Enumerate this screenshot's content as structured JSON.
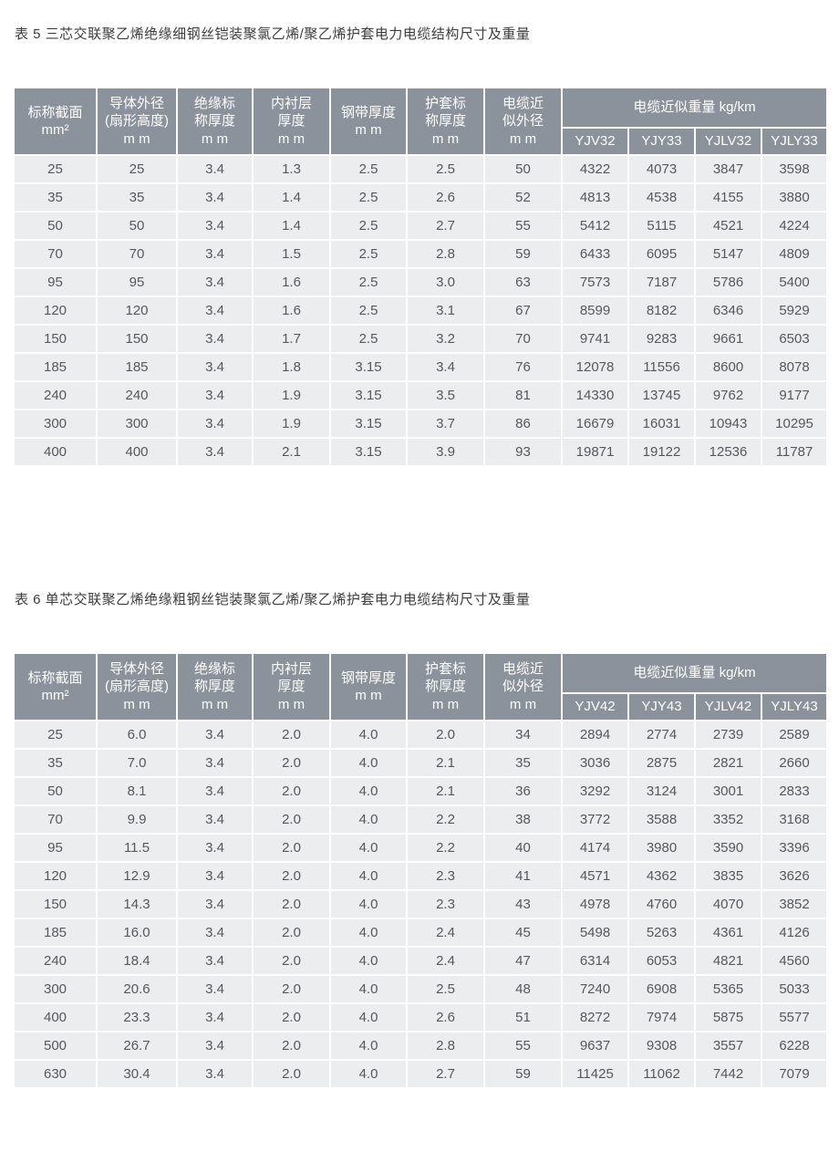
{
  "colors": {
    "header_bg": "#8b929b",
    "header_text": "#ffffff",
    "row_bg": "#ebedee",
    "cell_text": "#55585c",
    "title_text": "#3d3d3d",
    "grid_line": "#ffffff"
  },
  "tables": [
    {
      "title": "表 5 三芯交联聚乙烯绝缘细钢丝铠装聚氯乙烯/聚乙烯护套电力电缆结构尺寸及重量",
      "columns": [
        "标称截面\nmm²",
        "导体外径\n(扇形高度)\nm m",
        "绝缘标\n称厚度\nm m",
        "内衬层\n厚度\nm m",
        "钢带厚度\nm m",
        "护套标\n称厚度\nm m",
        "电缆近\n似外径\nm m"
      ],
      "weight_group": {
        "label": "电缆近似重量 kg/km",
        "models": [
          "YJV32",
          "YJY33",
          "YJLV32",
          "YJLY33"
        ]
      },
      "rows": [
        [
          "25",
          "25",
          "3.4",
          "1.3",
          "2.5",
          "2.5",
          "50",
          "4322",
          "4073",
          "3847",
          "3598"
        ],
        [
          "35",
          "35",
          "3.4",
          "1.4",
          "2.5",
          "2.6",
          "52",
          "4813",
          "4538",
          "4155",
          "3880"
        ],
        [
          "50",
          "50",
          "3.4",
          "1.4",
          "2.5",
          "2.7",
          "55",
          "5412",
          "5115",
          "4521",
          "4224"
        ],
        [
          "70",
          "70",
          "3.4",
          "1.5",
          "2.5",
          "2.8",
          "59",
          "6433",
          "6095",
          "5147",
          "4809"
        ],
        [
          "95",
          "95",
          "3.4",
          "1.6",
          "2.5",
          "3.0",
          "63",
          "7573",
          "7187",
          "5786",
          "5400"
        ],
        [
          "120",
          "120",
          "3.4",
          "1.6",
          "2.5",
          "3.1",
          "67",
          "8599",
          "8182",
          "6346",
          "5929"
        ],
        [
          "150",
          "150",
          "3.4",
          "1.7",
          "2.5",
          "3.2",
          "70",
          "9741",
          "9283",
          "9661",
          "6503"
        ],
        [
          "185",
          "185",
          "3.4",
          "1.8",
          "3.15",
          "3.4",
          "76",
          "12078",
          "11556",
          "8600",
          "8078"
        ],
        [
          "240",
          "240",
          "3.4",
          "1.9",
          "3.15",
          "3.5",
          "81",
          "14330",
          "13745",
          "9762",
          "9177"
        ],
        [
          "300",
          "300",
          "3.4",
          "1.9",
          "3.15",
          "3.7",
          "86",
          "16679",
          "16031",
          "10943",
          "10295"
        ],
        [
          "400",
          "400",
          "3.4",
          "2.1",
          "3.15",
          "3.9",
          "93",
          "19871",
          "19122",
          "12536",
          "11787"
        ]
      ]
    },
    {
      "title": "表 6 单芯交联聚乙烯绝缘粗钢丝铠装聚氯乙烯/聚乙烯护套电力电缆结构尺寸及重量",
      "columns": [
        "标称截面\nmm²",
        "导体外径\n(扇形高度)\nm m",
        "绝缘标\n称厚度\nm m",
        "内衬层\n厚度\nm m",
        "钢带厚度\nm m",
        "护套标\n称厚度\nm m",
        "电缆近\n似外径\nm m"
      ],
      "weight_group": {
        "label": "电缆近似重量 kg/km",
        "models": [
          "YJV42",
          "YJY43",
          "YJLV42",
          "YJLY43"
        ]
      },
      "rows": [
        [
          "25",
          "6.0",
          "3.4",
          "2.0",
          "4.0",
          "2.0",
          "34",
          "2894",
          "2774",
          "2739",
          "2589"
        ],
        [
          "35",
          "7.0",
          "3.4",
          "2.0",
          "4.0",
          "2.1",
          "35",
          "3036",
          "2875",
          "2821",
          "2660"
        ],
        [
          "50",
          "8.1",
          "3.4",
          "2.0",
          "4.0",
          "2.1",
          "36",
          "3292",
          "3124",
          "3001",
          "2833"
        ],
        [
          "70",
          "9.9",
          "3.4",
          "2.0",
          "4.0",
          "2.2",
          "38",
          "3772",
          "3588",
          "3352",
          "3168"
        ],
        [
          "95",
          "11.5",
          "3.4",
          "2.0",
          "4.0",
          "2.2",
          "40",
          "4174",
          "3980",
          "3590",
          "3396"
        ],
        [
          "120",
          "12.9",
          "3.4",
          "2.0",
          "4.0",
          "2.3",
          "41",
          "4571",
          "4362",
          "3835",
          "3626"
        ],
        [
          "150",
          "14.3",
          "3.4",
          "2.0",
          "4.0",
          "2.3",
          "43",
          "4978",
          "4760",
          "4070",
          "3852"
        ],
        [
          "185",
          "16.0",
          "3.4",
          "2.0",
          "4.0",
          "2.4",
          "45",
          "5498",
          "5263",
          "4361",
          "4126"
        ],
        [
          "240",
          "18.4",
          "3.4",
          "2.0",
          "4.0",
          "2.4",
          "47",
          "6314",
          "6053",
          "4821",
          "4560"
        ],
        [
          "300",
          "20.6",
          "3.4",
          "2.0",
          "4.0",
          "2.5",
          "48",
          "7240",
          "6908",
          "5365",
          "5033"
        ],
        [
          "400",
          "23.3",
          "3.4",
          "2.0",
          "4.0",
          "2.6",
          "51",
          "8272",
          "7974",
          "5875",
          "5577"
        ],
        [
          "500",
          "26.7",
          "3.4",
          "2.0",
          "4.0",
          "2.8",
          "55",
          "9637",
          "9308",
          "3557",
          "6228"
        ],
        [
          "630",
          "30.4",
          "3.4",
          "2.0",
          "4.0",
          "2.7",
          "59",
          "11425",
          "11062",
          "7442",
          "7079"
        ]
      ]
    }
  ]
}
